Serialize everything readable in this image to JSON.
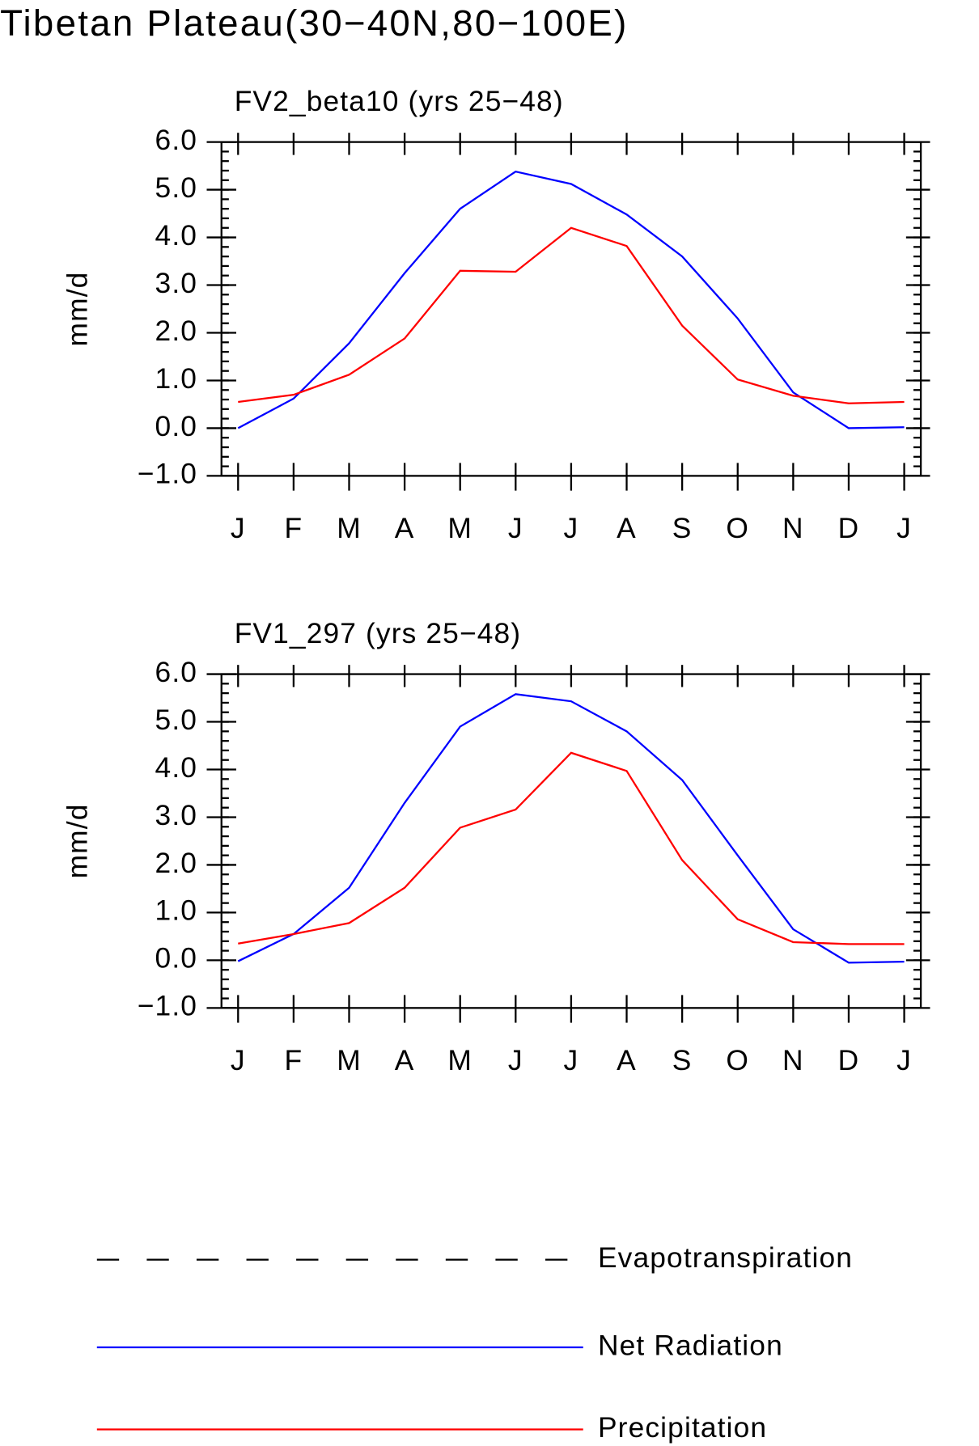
{
  "title": "Tibetan Plateau(30−40N,80−100E)",
  "chart_data": [
    {
      "type": "line",
      "title": "FV2_beta10 (yrs 25−48)",
      "y_label": "mm/d",
      "categories": [
        "J",
        "F",
        "M",
        "A",
        "M",
        "J",
        "J",
        "A",
        "S",
        "O",
        "N",
        "D",
        "J"
      ],
      "ylim": [
        -1,
        6
      ],
      "yticks": [
        {
          "value": -1,
          "label": "−1.0"
        },
        {
          "value": 0,
          "label": "0.0"
        },
        {
          "value": 1,
          "label": "1.0"
        },
        {
          "value": 2,
          "label": "2.0"
        },
        {
          "value": 3,
          "label": "3.0"
        },
        {
          "value": 4,
          "label": "4.0"
        },
        {
          "value": 5,
          "label": "5.0"
        },
        {
          "value": 6,
          "label": "6.0"
        }
      ],
      "series": [
        {
          "name": "Evapotranspiration",
          "color": "#000000",
          "dashed": true,
          "values": [
            null,
            null,
            null,
            null,
            null,
            null,
            null,
            null,
            null,
            null,
            null,
            null,
            null
          ]
        },
        {
          "name": "Net Radiation",
          "color": "#0000ff",
          "values": [
            0.0,
            0.62,
            1.78,
            3.25,
            4.6,
            5.38,
            5.12,
            4.48,
            3.6,
            2.3,
            0.75,
            0.0,
            0.02
          ]
        },
        {
          "name": "Precipitation",
          "color": "#ff0000",
          "values": [
            0.55,
            0.7,
            1.12,
            1.88,
            3.3,
            3.28,
            4.2,
            3.82,
            2.15,
            1.02,
            0.68,
            0.52,
            0.55
          ]
        }
      ]
    },
    {
      "type": "line",
      "title": "FV1_297 (yrs 25−48)",
      "y_label": "mm/d",
      "categories": [
        "J",
        "F",
        "M",
        "A",
        "M",
        "J",
        "J",
        "A",
        "S",
        "O",
        "N",
        "D",
        "J"
      ],
      "ylim": [
        -1,
        6
      ],
      "yticks": [
        {
          "value": -1,
          "label": "−1.0"
        },
        {
          "value": 0,
          "label": "0.0"
        },
        {
          "value": 1,
          "label": "1.0"
        },
        {
          "value": 2,
          "label": "2.0"
        },
        {
          "value": 3,
          "label": "3.0"
        },
        {
          "value": 4,
          "label": "4.0"
        },
        {
          "value": 5,
          "label": "5.0"
        },
        {
          "value": 6,
          "label": "6.0"
        }
      ],
      "series": [
        {
          "color": "#0000ff",
          "values": [
            -0.02,
            0.55,
            1.52,
            3.3,
            4.9,
            5.58,
            5.43,
            4.8,
            3.78,
            2.2,
            0.65,
            -0.05,
            -0.03
          ]
        },
        {
          "color": "#ff0000",
          "values": [
            0.35,
            0.55,
            0.78,
            1.52,
            2.78,
            3.16,
            4.35,
            3.97,
            2.1,
            0.86,
            0.38,
            0.34,
            0.34
          ]
        }
      ]
    }
  ]
}
